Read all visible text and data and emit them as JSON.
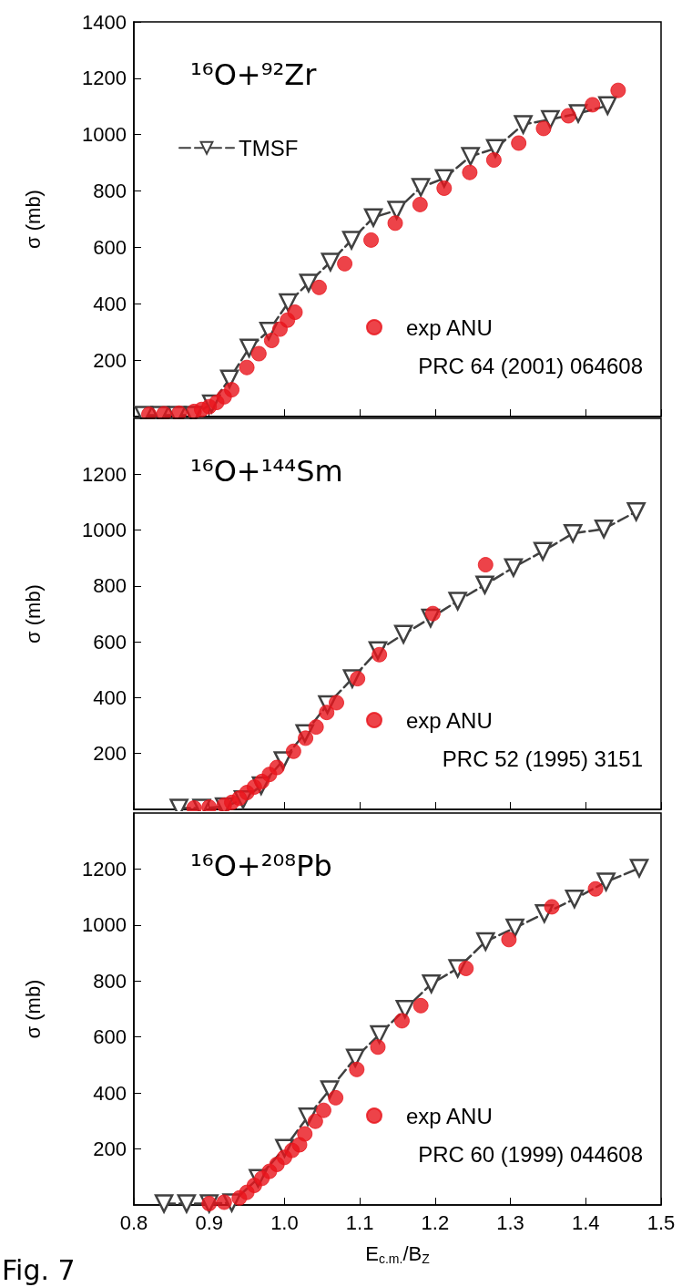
{
  "chart_data": [
    {
      "type": "line",
      "ylabel": "σ (mb)",
      "annotations": [
        "¹⁶O+⁹²Zr",
        "PRC 64 (2001) 064608"
      ],
      "xlim": [
        0.8,
        1.5
      ],
      "xticks": [
        0.8,
        0.9,
        1.0,
        1.1,
        1.2,
        1.3,
        1.4,
        1.5
      ],
      "ylim": [
        0,
        1400
      ],
      "yticks": [
        200,
        400,
        600,
        800,
        1000,
        1200,
        1400
      ],
      "tick_labels": "y",
      "legend": [
        "top left",
        "bottom right"
      ],
      "series": [
        {
          "name": "TMSF",
          "color": "#404040",
          "marker": "triangle",
          "line_style": "dashed",
          "x": [
            0.813,
            0.835,
            0.857,
            0.879,
            0.903,
            0.927,
            0.953,
            0.979,
            1.005,
            1.032,
            1.061,
            1.089,
            1.118,
            1.149,
            1.181,
            1.212,
            1.247,
            1.28,
            1.317,
            1.353,
            1.39,
            1.429
          ],
          "values": [
            5,
            5,
            5,
            5,
            45,
            133,
            243,
            303,
            404,
            474,
            548,
            626,
            706,
            732,
            813,
            845,
            923,
            951,
            1036,
            1054,
            1075,
            1103
          ]
        },
        {
          "name": "exp ANU",
          "type": "scatter",
          "color": "#e8141c",
          "marker": "circle",
          "x": [
            0.82,
            0.84,
            0.86,
            0.88,
            0.89,
            0.9,
            0.91,
            0.92,
            0.93,
            0.95,
            0.966,
            0.983,
            0.994,
            1.004,
            1.014,
            1.046,
            1.08,
            1.115,
            1.147,
            1.18,
            1.212,
            1.246,
            1.278,
            1.311,
            1.344,
            1.377,
            1.409,
            1.443
          ],
          "values": [
            8,
            10,
            12,
            18,
            25,
            35,
            50,
            70,
            95,
            174,
            223,
            270,
            310,
            342,
            370,
            458,
            542,
            626,
            686,
            752,
            810,
            866,
            910,
            970,
            1022,
            1067,
            1106,
            1157
          ]
        }
      ]
    },
    {
      "type": "line",
      "ylabel": "σ (mb)",
      "annotations": [
        "¹⁶O+¹⁴⁴Sm",
        "PRC 52 (1995) 3151"
      ],
      "xlim": [
        0.8,
        1.5
      ],
      "xticks": [
        0.8,
        0.9,
        1.0,
        1.1,
        1.2,
        1.3,
        1.4,
        1.5
      ],
      "ylim": [
        0,
        1400
      ],
      "yticks": [
        200,
        400,
        600,
        800,
        1000,
        1200
      ],
      "tick_labels": "y",
      "legend": "bottom right",
      "series": [
        {
          "color": "#404040",
          "marker": "triangle",
          "line_style": "dashed",
          "x": [
            0.86,
            0.89,
            0.92,
            0.945,
            0.969,
            0.998,
            1.027,
            1.057,
            1.09,
            1.124,
            1.158,
            1.194,
            1.23,
            1.266,
            1.304,
            1.343,
            1.383,
            1.424,
            1.467
          ],
          "values": [
            5,
            5,
            10,
            35,
            85,
            175,
            272,
            375,
            468,
            569,
            627,
            685,
            746,
            804,
            866,
            924,
            988,
            1004,
            1066
          ]
        },
        {
          "name": "exp ANU",
          "type": "scatter",
          "color": "#e8141c",
          "marker": "circle",
          "x": [
            0.88,
            0.9,
            0.92,
            0.93,
            0.94,
            0.95,
            0.96,
            0.97,
            0.98,
            0.99,
            1.012,
            1.028,
            1.042,
            1.056,
            1.069,
            1.097,
            1.126,
            1.197,
            1.267
          ],
          "values": [
            5,
            8,
            15,
            25,
            40,
            60,
            80,
            100,
            125,
            150,
            208,
            255,
            295,
            347,
            382,
            468,
            554,
            701,
            876
          ]
        }
      ]
    },
    {
      "type": "line",
      "ylabel": "σ (mb)",
      "xlabel": "E$_{c.m.}$/B$_{Z}$",
      "annotations": [
        "¹⁶O+²⁰⁸Pb",
        "PRC 60 (1999) 044608",
        "Fig. 7"
      ],
      "xlim": [
        0.8,
        1.5
      ],
      "xticks": [
        0.8,
        0.9,
        {
          "value": 1.0,
          "label": "1.0"
        },
        1.1,
        1.2,
        1.3,
        1.4,
        1.5
      ],
      "ylim": [
        0,
        1400
      ],
      "yticks": [
        200,
        400,
        600,
        800,
        1000,
        1200
      ],
      "legend": "bottom right",
      "series": [
        {
          "color": "#404040",
          "marker": "triangle",
          "line_style": "dashed",
          "x": [
            0.84,
            0.87,
            0.9,
            0.93,
            0.965,
            1.0,
            1.031,
            1.06,
            1.094,
            1.126,
            1.16,
            1.195,
            1.23,
            1.267,
            1.306,
            1.345,
            1.385,
            1.427,
            1.471
          ],
          "values": [
            5,
            5,
            5,
            8,
            95,
            203,
            315,
            412,
            525,
            609,
            699,
            790,
            845,
            941,
            990,
            1041,
            1093,
            1154,
            1203
          ]
        },
        {
          "name": "exp ANU",
          "type": "scatter",
          "color": "#e8141c",
          "marker": "circle",
          "x": [
            0.9,
            0.92,
            0.94,
            0.95,
            0.96,
            0.97,
            0.98,
            0.99,
            1.0,
            1.01,
            1.02,
            1.027,
            1.041,
            1.052,
            1.068,
            1.096,
            1.124,
            1.156,
            1.181,
            1.241,
            1.298,
            1.355,
            1.413
          ],
          "values": [
            5,
            10,
            25,
            45,
            70,
            95,
            120,
            145,
            170,
            195,
            215,
            254,
            299,
            338,
            383,
            484,
            564,
            658,
            712,
            845,
            948,
            1065,
            1129
          ]
        }
      ]
    }
  ]
}
